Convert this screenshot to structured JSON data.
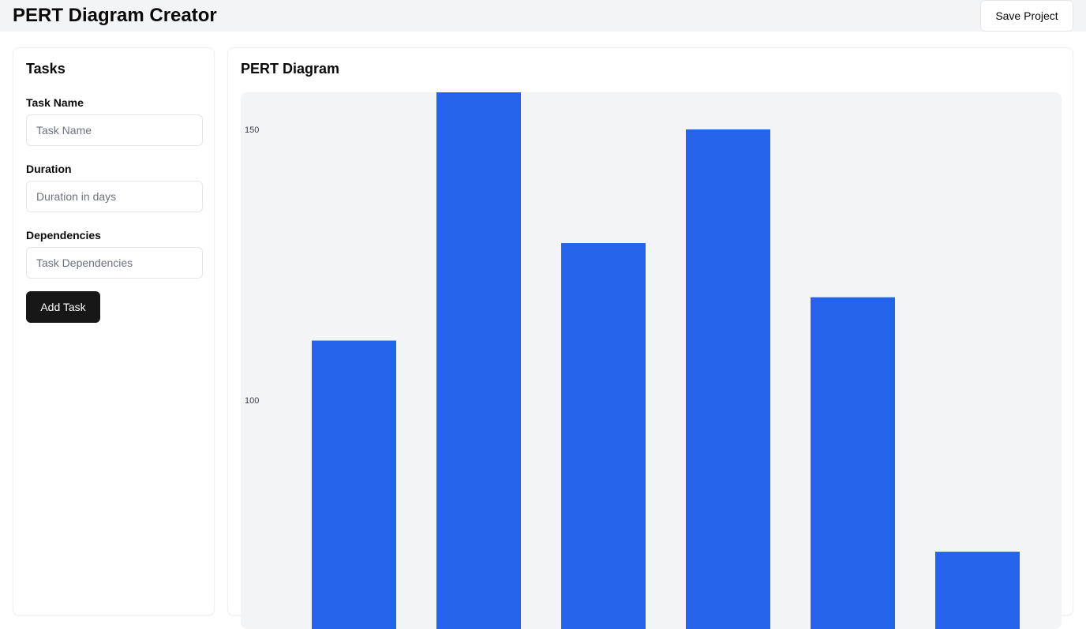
{
  "header": {
    "title": "PERT Diagram Creator",
    "save_label": "Save Project"
  },
  "tasks_panel": {
    "title": "Tasks",
    "task_name": {
      "label": "Task Name",
      "placeholder": "Task Name",
      "value": ""
    },
    "duration": {
      "label": "Duration",
      "placeholder": "Duration in days",
      "value": ""
    },
    "dependencies": {
      "label": "Dependencies",
      "placeholder": "Task Dependencies",
      "value": ""
    },
    "add_label": "Add Task"
  },
  "diagram_panel": {
    "title": "PERT Diagram"
  },
  "colors": {
    "bar": "#2563eb",
    "chart_background": "#f3f4f6"
  },
  "chart_data": {
    "type": "bar",
    "categories": [
      "",
      "",
      "",
      "",
      "",
      ""
    ],
    "values": [
      111,
      157,
      129,
      150,
      119,
      72
    ],
    "title": "",
    "xlabel": "",
    "ylabel": "",
    "yticks": [
      100,
      150
    ],
    "ylim": [
      50,
      157
    ],
    "grid": false,
    "legend": "none"
  }
}
